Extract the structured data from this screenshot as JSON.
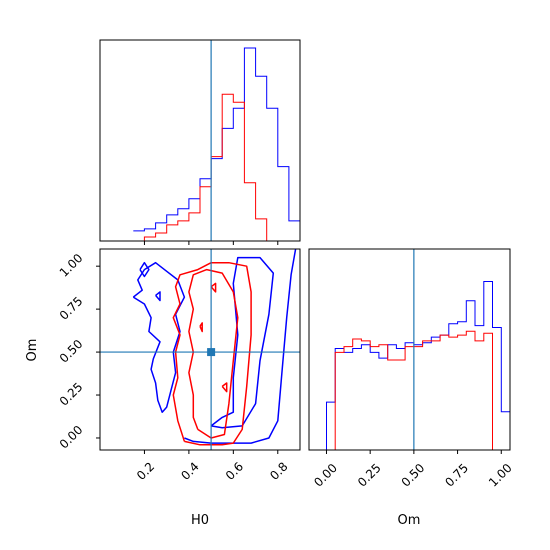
{
  "chart_data": {
    "type": "corner",
    "parameters": [
      "H0",
      "Om"
    ],
    "truth": {
      "H0": 0.5,
      "Om": 0.5
    },
    "colors": {
      "series_a": "#0000ff",
      "series_b": "#ff0000",
      "truth": "#1f77b4",
      "frame": "#000000"
    },
    "grid": false,
    "panels": {
      "h0_hist": {
        "xlim": [
          0,
          0.9
        ],
        "x_ticks": [
          0.2,
          0.4,
          0.6,
          0.8
        ],
        "tick_labels_shown": false,
        "bins": [
          0.15,
          0.2,
          0.25,
          0.3,
          0.35,
          0.4,
          0.45,
          0.5,
          0.55,
          0.6,
          0.65,
          0.7,
          0.75,
          0.8,
          0.85,
          0.9
        ],
        "series_a_values": [
          0.05,
          0.06,
          0.09,
          0.13,
          0.16,
          0.21,
          0.31,
          0.41,
          0.56,
          0.66,
          0.96,
          0.82,
          0.66,
          0.37,
          0.1
        ],
        "series_b_values": [
          0.0,
          0.02,
          0.04,
          0.08,
          0.1,
          0.14,
          0.27,
          0.42,
          0.73,
          0.69,
          0.29,
          0.11,
          0.0,
          0.0,
          0.0
        ]
      },
      "h0_om_contour": {
        "xlim": [
          0,
          0.9
        ],
        "ylim": [
          -0.07,
          1.1
        ],
        "x_ticks": [
          "0.2",
          "0.4",
          "0.6",
          "0.8"
        ],
        "y_ticks": [
          "0.00",
          "0.25",
          "0.50",
          "0.75",
          "1.00"
        ],
        "x_tick_values": [
          0.2,
          0.4,
          0.6,
          0.8
        ],
        "y_tick_values": [
          0,
          0.25,
          0.5,
          0.75,
          1.0
        ],
        "xlabel": "H0",
        "ylabel": "Om",
        "series_a_contours": [
          [
            [
              0.38,
              0.0
            ],
            [
              0.42,
              -0.02
            ],
            [
              0.5,
              -0.03
            ],
            [
              0.6,
              -0.03
            ],
            [
              0.68,
              -0.03
            ],
            [
              0.76,
              0.0
            ],
            [
              0.8,
              0.1
            ],
            [
              0.82,
              0.4
            ],
            [
              0.84,
              0.7
            ],
            [
              0.86,
              0.95
            ],
            [
              0.88,
              1.1
            ]
          ],
          [
            [
              0.5,
              0.07
            ],
            [
              0.55,
              0.06
            ],
            [
              0.64,
              0.07
            ],
            [
              0.7,
              0.2
            ],
            [
              0.72,
              0.45
            ],
            [
              0.76,
              0.72
            ],
            [
              0.78,
              0.96
            ],
            [
              0.72,
              1.05
            ],
            [
              0.62,
              1.05
            ],
            [
              0.6,
              0.9
            ],
            [
              0.62,
              0.6
            ],
            [
              0.6,
              0.35
            ],
            [
              0.6,
              0.15
            ],
            [
              0.55,
              0.12
            ],
            [
              0.5,
              0.07
            ]
          ],
          [
            [
              0.15,
              0.82
            ],
            [
              0.2,
              0.78
            ],
            [
              0.23,
              0.7
            ],
            [
              0.22,
              0.62
            ],
            [
              0.27,
              0.56
            ],
            [
              0.24,
              0.46
            ],
            [
              0.23,
              0.4
            ],
            [
              0.25,
              0.32
            ],
            [
              0.26,
              0.22
            ],
            [
              0.28,
              0.15
            ],
            [
              0.3,
              0.18
            ],
            [
              0.32,
              0.28
            ],
            [
              0.34,
              0.38
            ],
            [
              0.33,
              0.5
            ],
            [
              0.36,
              0.62
            ],
            [
              0.34,
              0.72
            ],
            [
              0.38,
              0.82
            ],
            [
              0.35,
              0.92
            ],
            [
              0.3,
              0.97
            ],
            [
              0.25,
              1.02
            ],
            [
              0.2,
              0.98
            ],
            [
              0.17,
              0.92
            ],
            [
              0.19,
              0.86
            ],
            [
              0.15,
              0.82
            ]
          ],
          [
            [
              0.18,
              0.98
            ],
            [
              0.2,
              1.02
            ],
            [
              0.22,
              0.98
            ],
            [
              0.2,
              0.94
            ],
            [
              0.18,
              0.98
            ]
          ],
          [
            [
              0.25,
              0.83
            ],
            [
              0.27,
              0.85
            ],
            [
              0.27,
              0.8
            ],
            [
              0.25,
              0.83
            ]
          ]
        ],
        "series_b_contours": [
          [
            [
              0.38,
              -0.02
            ],
            [
              0.45,
              -0.04
            ],
            [
              0.55,
              -0.04
            ],
            [
              0.6,
              -0.03
            ],
            [
              0.64,
              0.05
            ],
            [
              0.66,
              0.3
            ],
            [
              0.68,
              0.6
            ],
            [
              0.68,
              0.85
            ],
            [
              0.66,
              1.0
            ],
            [
              0.58,
              1.02
            ],
            [
              0.5,
              1.02
            ],
            [
              0.44,
              0.98
            ],
            [
              0.36,
              0.95
            ],
            [
              0.34,
              0.88
            ],
            [
              0.36,
              0.78
            ],
            [
              0.33,
              0.7
            ],
            [
              0.36,
              0.6
            ],
            [
              0.34,
              0.5
            ],
            [
              0.35,
              0.35
            ],
            [
              0.33,
              0.25
            ],
            [
              0.35,
              0.1
            ],
            [
              0.38,
              -0.02
            ]
          ],
          [
            [
              0.44,
              0.05
            ],
            [
              0.5,
              0.0
            ],
            [
              0.56,
              0.02
            ],
            [
              0.58,
              0.2
            ],
            [
              0.6,
              0.45
            ],
            [
              0.62,
              0.7
            ],
            [
              0.6,
              0.85
            ],
            [
              0.55,
              0.96
            ],
            [
              0.48,
              0.98
            ],
            [
              0.42,
              0.95
            ],
            [
              0.4,
              0.85
            ],
            [
              0.42,
              0.75
            ],
            [
              0.4,
              0.62
            ],
            [
              0.42,
              0.5
            ],
            [
              0.4,
              0.38
            ],
            [
              0.42,
              0.25
            ],
            [
              0.42,
              0.12
            ],
            [
              0.44,
              0.05
            ]
          ],
          [
            [
              0.45,
              0.65
            ],
            [
              0.46,
              0.67
            ],
            [
              0.46,
              0.62
            ],
            [
              0.45,
              0.65
            ]
          ],
          [
            [
              0.5,
              0.88
            ],
            [
              0.52,
              0.9
            ],
            [
              0.52,
              0.85
            ],
            [
              0.5,
              0.88
            ]
          ],
          [
            [
              0.55,
              0.3
            ],
            [
              0.57,
              0.32
            ],
            [
              0.57,
              0.27
            ],
            [
              0.55,
              0.3
            ]
          ]
        ]
      },
      "om_hist": {
        "xlim": [
          -0.1,
          1.05
        ],
        "x_ticks": [
          "0.00",
          "0.25",
          "0.50",
          "0.75",
          "1.00"
        ],
        "x_tick_values": [
          0,
          0.25,
          0.5,
          0.75,
          1.0
        ],
        "xlabel": "Om",
        "bins": [
          -0.05,
          0.0,
          0.05,
          0.1,
          0.15,
          0.2,
          0.25,
          0.3,
          0.35,
          0.4,
          0.45,
          0.5,
          0.55,
          0.6,
          0.65,
          0.7,
          0.75,
          0.8,
          0.85,
          0.9,
          0.95,
          1.0,
          1.05
        ],
        "series_a_values": [
          0.0,
          0.25,
          0.53,
          0.51,
          0.53,
          0.55,
          0.51,
          0.48,
          0.55,
          0.53,
          0.56,
          0.55,
          0.56,
          0.59,
          0.6,
          0.66,
          0.67,
          0.78,
          0.65,
          0.88,
          0.64,
          0.2
        ],
        "series_b_values": [
          0.0,
          0.0,
          0.51,
          0.54,
          0.58,
          0.57,
          0.54,
          0.55,
          0.47,
          0.47,
          0.54,
          0.54,
          0.57,
          0.57,
          0.6,
          0.59,
          0.6,
          0.62,
          0.57,
          0.61,
          0.0,
          0.0
        ],
        "ymax": 1.05
      }
    }
  }
}
